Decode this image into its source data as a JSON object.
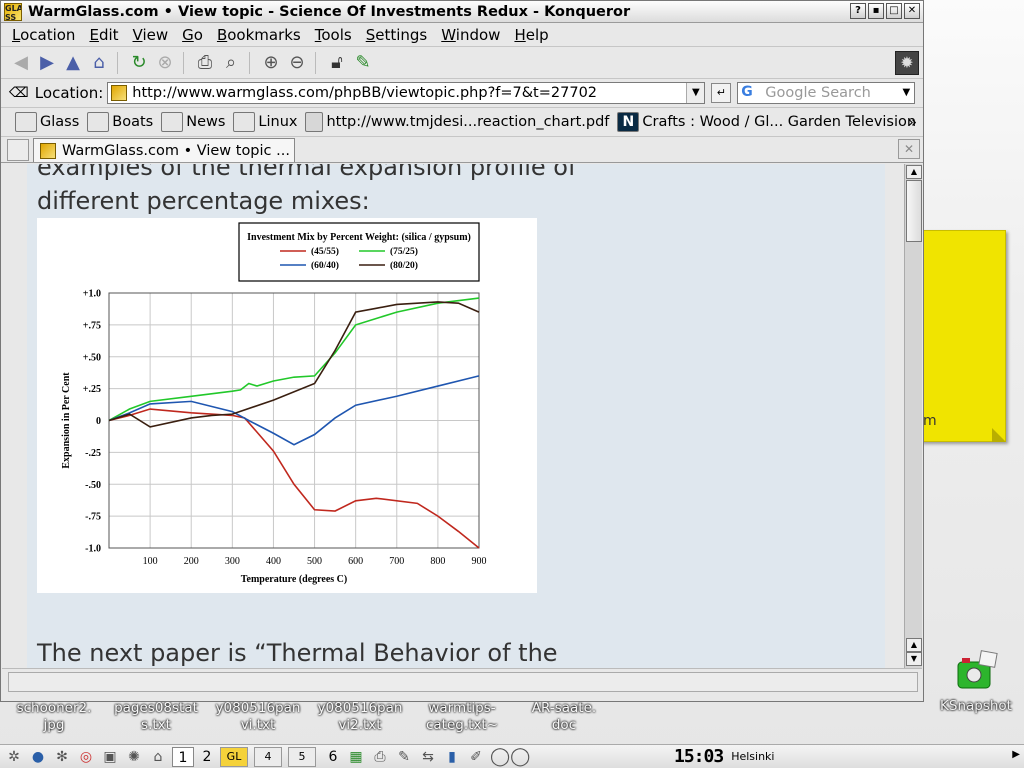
{
  "window": {
    "title": "WarmGlass.com • View topic - Science Of Investments Redux - Konqueror",
    "controls": [
      "?",
      "▪",
      "□",
      "✕"
    ]
  },
  "menu": [
    {
      "key": "L",
      "rest": "ocation"
    },
    {
      "key": "E",
      "rest": "dit"
    },
    {
      "key": "V",
      "rest": "iew"
    },
    {
      "key": "G",
      "rest": "o"
    },
    {
      "key": "B",
      "rest": "ookmarks"
    },
    {
      "key": "T",
      "rest": "ools"
    },
    {
      "key": "S",
      "rest": "ettings"
    },
    {
      "key": "W",
      "rest": "indow"
    },
    {
      "key": "H",
      "rest": "elp"
    }
  ],
  "location": {
    "label": "Location:",
    "url": "http://www.warmglass.com/phpBB/viewtopic.php?f=7&t=27702",
    "search_placeholder": "Google Search"
  },
  "bookmarks": [
    "Glass",
    "Boats",
    "News",
    "Linux",
    "http://www.tmjdesi...reaction_chart.pdf",
    "Crafts : Wood / Gl... Garden Television"
  ],
  "tab": {
    "label": "WarmGlass.com • View topic ..."
  },
  "page": {
    "text_top": "examples of the thermal expansion profile of different percentage mixes:",
    "text_bottom": "The next paper is “Thermal Behavior of the"
  },
  "chart_data": {
    "type": "line",
    "title": "Investment Mix by Percent Weight: (silica / gypsum)",
    "xlabel": "Temperature (degrees C)",
    "ylabel": "Expansion in Per Cent",
    "xlim": [
      0,
      900
    ],
    "ylim": [
      -1.0,
      1.0
    ],
    "xticks": [
      "100",
      "200",
      "300",
      "400",
      "500",
      "600",
      "700",
      "800",
      "900"
    ],
    "yticks": [
      "+1.0",
      "+.75",
      "+.50",
      "+.25",
      "0",
      "-.25",
      "-.50",
      "-.75",
      "-1.0"
    ],
    "grid": true,
    "legend_position": "top-center",
    "series": [
      {
        "name": "(45/55)",
        "color": "#c0281e",
        "x": [
          0,
          50,
          100,
          200,
          300,
          330,
          400,
          450,
          500,
          550,
          600,
          650,
          750,
          800,
          850,
          900
        ],
        "y": [
          0,
          0.04,
          0.09,
          0.06,
          0.04,
          0.02,
          -0.24,
          -0.5,
          -0.7,
          -0.71,
          -0.63,
          -0.61,
          -0.65,
          -0.75,
          -0.87,
          -1.0
        ]
      },
      {
        "name": "(75/25)",
        "color": "#22c82a",
        "x": [
          0,
          50,
          100,
          200,
          300,
          320,
          340,
          360,
          380,
          400,
          450,
          500,
          550,
          600,
          650,
          700,
          800,
          900
        ],
        "y": [
          0,
          0.09,
          0.15,
          0.19,
          0.23,
          0.24,
          0.29,
          0.27,
          0.29,
          0.31,
          0.34,
          0.35,
          0.53,
          0.75,
          0.8,
          0.85,
          0.92,
          0.96
        ]
      },
      {
        "name": "(60/40)",
        "color": "#1f56b0",
        "x": [
          0,
          50,
          100,
          200,
          300,
          340,
          400,
          450,
          500,
          550,
          600,
          700,
          800,
          900
        ],
        "y": [
          0,
          0.06,
          0.13,
          0.15,
          0.07,
          0.0,
          -0.1,
          -0.19,
          -0.11,
          0.02,
          0.12,
          0.19,
          0.27,
          0.35
        ]
      },
      {
        "name": "(80/20)",
        "color": "#3a1f10",
        "x": [
          0,
          50,
          100,
          200,
          250,
          300,
          400,
          500,
          550,
          600,
          650,
          700,
          800,
          850,
          900
        ],
        "y": [
          0,
          0.05,
          -0.05,
          0.02,
          0.04,
          0.05,
          0.16,
          0.29,
          0.55,
          0.85,
          0.88,
          0.91,
          0.93,
          0.92,
          0.85
        ]
      }
    ]
  },
  "desktop": {
    "note_text": "m",
    "icons": [
      "schooner2.\njpg",
      "pages08stat\ns.txt",
      "y080516pan\nvi.txt",
      "y080516pan\nvi2.txt",
      "warmtips-\ncateg.txt~",
      "AR-saate.\ndoc"
    ],
    "ksnapshot": "KSnapshot"
  },
  "taskbar": {
    "pagers": [
      "1",
      "2"
    ],
    "extra_pager": "6",
    "clock": "15:03",
    "timezone": "Helsinki"
  }
}
